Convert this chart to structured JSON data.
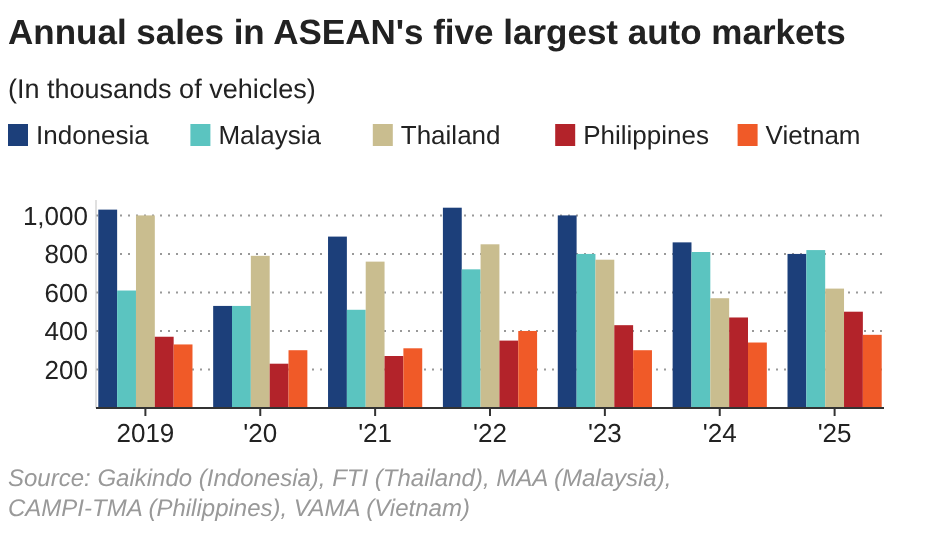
{
  "chart_data": {
    "type": "bar",
    "title": "Annual sales in ASEAN's five largest auto markets",
    "subtitle": "(In thousands of vehicles)",
    "categories": [
      "2019",
      "'20",
      "'21",
      "'22",
      "'23",
      "'24",
      "'25"
    ],
    "series": [
      {
        "name": "Indonesia",
        "color": "#1c3f7a",
        "values": [
          1030,
          530,
          890,
          1040,
          1000,
          860,
          800
        ]
      },
      {
        "name": "Malaysia",
        "color": "#5bc4c0",
        "values": [
          610,
          530,
          510,
          720,
          800,
          810,
          820
        ]
      },
      {
        "name": "Thailand",
        "color": "#c9bd8f",
        "values": [
          1000,
          790,
          760,
          850,
          770,
          570,
          620
        ]
      },
      {
        "name": "Philippines",
        "color": "#b3232a",
        "values": [
          370,
          230,
          270,
          350,
          430,
          470,
          500
        ]
      },
      {
        "name": "Vietnam",
        "color": "#f05a28",
        "values": [
          330,
          300,
          310,
          400,
          300,
          340,
          380
        ]
      }
    ],
    "ylim": [
      0,
      1080
    ],
    "yticks": [
      {
        "value": 200,
        "label": "200"
      },
      {
        "value": 400,
        "label": "400"
      },
      {
        "value": 600,
        "label": "600"
      },
      {
        "value": 800,
        "label": "800"
      },
      {
        "value": 1000,
        "label": "1,000"
      }
    ],
    "grid": "y",
    "legend": "top",
    "annotations": [
      "Source: Gaikindo (Indonesia), FTI (Thailand), MAA (Malaysia), CAMPI-TMA (Philippines), VAMA (Vietnam)"
    ]
  }
}
